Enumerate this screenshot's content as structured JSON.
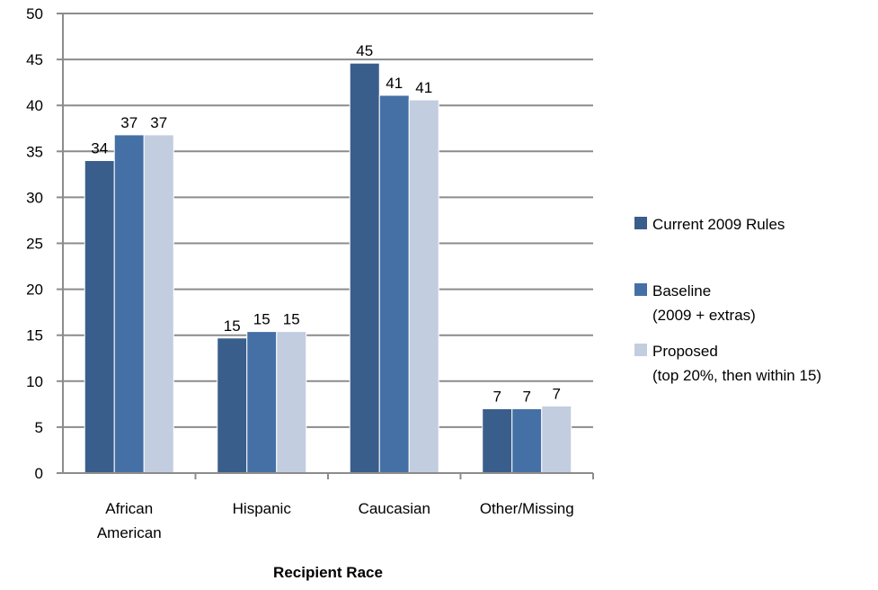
{
  "chart_data": {
    "type": "bar",
    "title": "",
    "xlabel": "Recipient Race",
    "ylabel": "",
    "ylim": [
      0,
      50
    ],
    "yticks": [
      0,
      5,
      10,
      15,
      20,
      25,
      30,
      35,
      40,
      45,
      50
    ],
    "grid": true,
    "legend_position": "right",
    "categories": [
      [
        "African",
        "American"
      ],
      [
        "Hispanic"
      ],
      [
        "Caucasian"
      ],
      [
        "Other/Missing"
      ]
    ],
    "series": [
      {
        "name_lines": [
          "Current 2009 Rules"
        ],
        "color": "#3a5e8c",
        "values": [
          34,
          14.7,
          44.6,
          7
        ],
        "labels": [
          "34",
          "15",
          "45",
          "7"
        ]
      },
      {
        "name_lines": [
          "Baseline",
          "(2009 + extras)"
        ],
        "color": "#4570a5",
        "values": [
          36.8,
          15.4,
          41.1,
          7
        ],
        "labels": [
          "37",
          "15",
          "41",
          "7"
        ]
      },
      {
        "name_lines": [
          "Proposed",
          "(top 20%, then within 15)"
        ],
        "color": "#c3cde0",
        "values": [
          36.8,
          15.4,
          40.6,
          7.3
        ],
        "labels": [
          "37",
          "15",
          "41",
          "7"
        ]
      }
    ]
  }
}
